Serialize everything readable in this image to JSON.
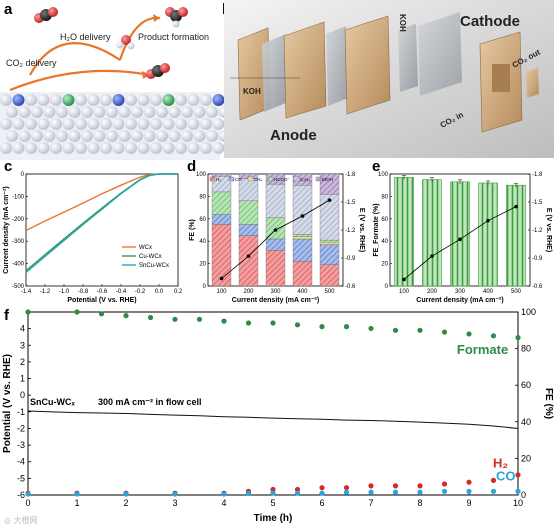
{
  "panel_labels": [
    "a",
    "b",
    "c",
    "d",
    "e",
    "f"
  ],
  "panel_a": {
    "labels": [
      "H₂O delivery",
      "Product formation",
      "CO₂ delivery"
    ]
  },
  "panel_b": {
    "labels": [
      "Cathode",
      "Anode",
      "KOH",
      "KOH",
      "CO₂ in",
      "CO₂ out"
    ]
  },
  "watermark": "◎ 大橙网",
  "colors": {
    "WCx": "#e8772e",
    "CuWCx": "#2e9e4e",
    "SnCuWCx": "#2aa7b6",
    "H2": "#e0484f",
    "CO": "#4a78c2",
    "CH4": "#f0c24a",
    "HCOO": "#5bbb5b",
    "C2H4": "#9aa4c0",
    "EtOH": "#8a6aa8",
    "formate_pt": "#2e8b4a",
    "h2_pt": "#d42a2a",
    "co_pt": "#27a6e0"
  },
  "chart_data": [
    {
      "panel": "c",
      "type": "line",
      "xlabel": "Potential (V vs. RHE)",
      "ylabel": "Current density (mA cm⁻²)",
      "xlim": [
        -1.4,
        0.2
      ],
      "ylim": [
        -500,
        0
      ],
      "xticks": [
        "-1.4",
        "-1.2",
        "-1.0",
        "-0.8",
        "-0.6",
        "-0.4",
        "-0.2",
        "0.0",
        "0.2"
      ],
      "yticks": [
        "0",
        "-100",
        "-200",
        "-300",
        "-400",
        "-500"
      ],
      "legend": "bottom-right",
      "series": [
        {
          "name": "WCx",
          "x": [
            -1.4,
            -1.2,
            -1.0,
            -0.8,
            -0.6,
            -0.4,
            -0.2,
            -0.1,
            0.0,
            0.2
          ],
          "y": [
            -252,
            -210,
            -170,
            -130,
            -88,
            -50,
            -14,
            -3,
            0,
            0
          ]
        },
        {
          "name": "Cu-WCx",
          "x": [
            -1.4,
            -1.2,
            -1.0,
            -0.8,
            -0.6,
            -0.4,
            -0.2,
            -0.1,
            0.0,
            0.2
          ],
          "y": [
            -432,
            -360,
            -290,
            -220,
            -152,
            -85,
            -25,
            -6,
            0,
            0
          ]
        },
        {
          "name": "SnCu-WCx",
          "x": [
            -1.4,
            -1.2,
            -1.0,
            -0.8,
            -0.6,
            -0.4,
            -0.2,
            -0.1,
            0.0,
            0.2
          ],
          "y": [
            -440,
            -368,
            -297,
            -226,
            -157,
            -88,
            -27,
            -7,
            0,
            0
          ]
        }
      ]
    },
    {
      "panel": "d",
      "type": "bar",
      "xlabel": "Current density (mA cm⁻²)",
      "ylabel": "FE (%)",
      "y2label": "E (V vs. RHE)",
      "categories": [
        "100",
        "200",
        "300",
        "400",
        "500"
      ],
      "yticks": [
        "0",
        "20",
        "40",
        "60",
        "80",
        "100"
      ],
      "y2ticks": [
        "-0.6",
        "-0.9",
        "-1.2",
        "-1.5",
        "-1.8"
      ],
      "ylim": [
        0,
        100
      ],
      "y2lim": [
        -0.6,
        -1.8
      ],
      "legend": "top",
      "series": [
        {
          "name": "H₂",
          "values": [
            55,
            45,
            32,
            22,
            19
          ]
        },
        {
          "name": "CO",
          "values": [
            9,
            10,
            10,
            20,
            18
          ]
        },
        {
          "name": "CH₄",
          "values": [
            0,
            0,
            0,
            2,
            2
          ]
        },
        {
          "name": "HCOO⁻",
          "values": [
            20,
            21,
            19,
            2,
            2
          ]
        },
        {
          "name": "C₂H₄",
          "values": [
            14,
            20,
            30,
            44,
            41
          ]
        },
        {
          "name": "EtOH",
          "values": [
            2,
            4,
            9,
            10,
            18
          ]
        }
      ],
      "potential": {
        "values": [
          -0.68,
          -0.92,
          -1.2,
          -1.35,
          -1.52
        ]
      }
    },
    {
      "panel": "e",
      "type": "bar",
      "xlabel": "Current density (mA cm⁻²)",
      "ylabel": "FE_Formate (%)",
      "y2label": "E (V vs. RHE)",
      "categories": [
        "100",
        "200",
        "300",
        "400",
        "500"
      ],
      "yticks": [
        "0",
        "20",
        "40",
        "60",
        "80",
        "100"
      ],
      "y2ticks": [
        "-0.6",
        "-0.9",
        "-1.2",
        "-1.5",
        "-1.8"
      ],
      "ylim": [
        0,
        100
      ],
      "y2lim": [
        -0.6,
        -1.8
      ],
      "values": [
        97,
        95,
        93,
        92,
        90
      ],
      "potential": {
        "values": [
          -0.67,
          -0.92,
          -1.1,
          -1.3,
          -1.45
        ]
      }
    },
    {
      "panel": "f",
      "type": "scatter",
      "xlabel": "Time (h)",
      "ylabel": "Potential (V vs. RHE)",
      "y2label": "FE (%)",
      "xlim": [
        0,
        10
      ],
      "ylim": [
        -6,
        5
      ],
      "y2lim": [
        0,
        100
      ],
      "xticks": [
        "0",
        "1",
        "2",
        "3",
        "4",
        "5",
        "6",
        "7",
        "8",
        "9",
        "10"
      ],
      "yticks": [
        "-6",
        "-5",
        "-4",
        "-3",
        "-2",
        "-1",
        "0",
        "1",
        "2",
        "3",
        "4"
      ],
      "y2ticks": [
        "0",
        "20",
        "40",
        "60",
        "80",
        "100"
      ],
      "annotation_sample": "SnCu-WCₓ",
      "annotation_condition": "300 mA cm⁻² in flow cell",
      "series_labels": [
        "Formate",
        "H₂",
        "CO"
      ],
      "potential_line": {
        "x": [
          0,
          0.5,
          1,
          1.5,
          2,
          2.5,
          3,
          3.5,
          4,
          4.5,
          5,
          5.5,
          6,
          6.5,
          7,
          7.5,
          8,
          8.5,
          9,
          9.5,
          10
        ],
        "y": [
          -0.95,
          -1.0,
          -1.05,
          -1.07,
          -1.1,
          -1.15,
          -1.2,
          -1.24,
          -1.3,
          -1.33,
          -1.38,
          -1.42,
          -1.45,
          -1.5,
          -1.52,
          -1.57,
          -1.62,
          -1.68,
          -1.75,
          -1.85,
          -2.0
        ]
      },
      "series": [
        {
          "name": "Formate",
          "x": [
            0,
            1,
            1.5,
            2,
            2.5,
            3,
            3.5,
            4,
            4.5,
            5,
            5.5,
            6,
            6.5,
            7,
            7.5,
            8,
            8.5,
            9,
            9.5,
            10
          ],
          "y": [
            100,
            100,
            99,
            98,
            97,
            96,
            96,
            95,
            94,
            94,
            93,
            92,
            92,
            91,
            90,
            90,
            89,
            88,
            87,
            86
          ]
        },
        {
          "name": "H₂",
          "x": [
            0,
            1,
            2,
            3,
            4,
            4.5,
            5,
            5.5,
            6,
            6.5,
            7,
            7.5,
            8,
            8.5,
            9,
            9.5,
            10
          ],
          "y": [
            1,
            1,
            1,
            1,
            1,
            2,
            3,
            3,
            4,
            4,
            5,
            5,
            5,
            6,
            7,
            8,
            11
          ]
        },
        {
          "name": "CO",
          "x": [
            0,
            1,
            2,
            3,
            4,
            4.5,
            5,
            5.5,
            6,
            6.5,
            7,
            7.5,
            8,
            8.5,
            9,
            9.5,
            10
          ],
          "y": [
            0.5,
            0.5,
            0.5,
            0.5,
            0.5,
            0.8,
            1,
            1,
            1,
            1.5,
            1.5,
            1.5,
            1.5,
            2,
            2,
            2,
            2
          ]
        }
      ]
    }
  ]
}
